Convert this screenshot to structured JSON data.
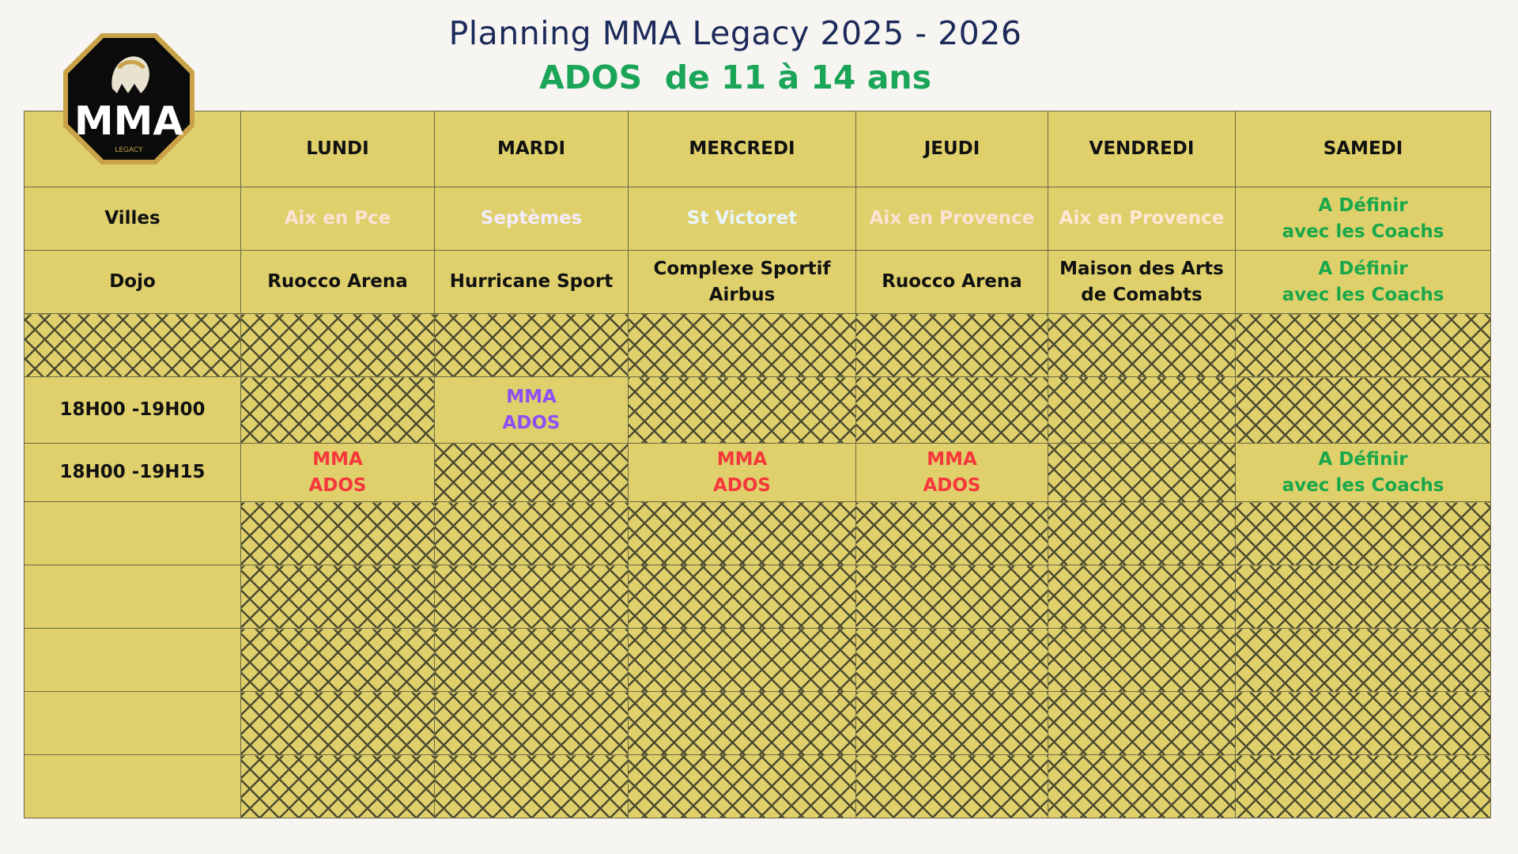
{
  "header": {
    "title": "Planning MMA Legacy 2025 - 2026",
    "subtitle": "ADOS  de 11 à 14 ans"
  },
  "logo": {
    "text": "MMA",
    "subtext": "LEGACY",
    "icon": "spartan-helmet-icon"
  },
  "days": [
    "LUNDI",
    "MARDI",
    "MERCREDI",
    "JEUDI",
    "VENDREDI",
    "SAMEDI"
  ],
  "rows": {
    "villes": {
      "label": "Villes",
      "cells": [
        "Aix en Pce",
        "Septèmes",
        "St Victoret",
        "Aix en Provence",
        "Aix en Provence",
        "A Définir\navec les Coachs"
      ]
    },
    "dojo": {
      "label": "Dojo",
      "cells": [
        "Ruocco Arena",
        "Hurricane Sport",
        "Complexe Sportif\nAirbus",
        "Ruocco Arena",
        "Maison des Arts\nde Comabts",
        "A Définir\navec les Coachs"
      ]
    },
    "slot1": {
      "label": "18H00 -19H00",
      "mardi": "MMA\nADOS"
    },
    "slot2": {
      "label": "18H00 -19H15",
      "lundi": "MMA\nADOS",
      "mercredi": "MMA\nADOS",
      "jeudi": "MMA\nADOS",
      "samedi": "A Définir\navec les Coachs"
    }
  },
  "colors": {
    "background": "#dfd06c",
    "red": "#f6373b",
    "purple": "#8c50f5",
    "blue": "#3ab2f5",
    "orange": "#fb8b45",
    "green": "#1aa84a",
    "title": "#1c2a5a"
  }
}
